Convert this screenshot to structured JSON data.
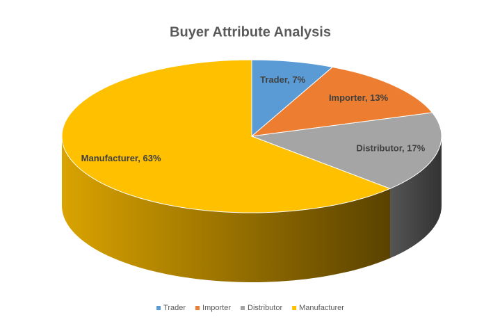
{
  "chart_data": {
    "type": "pie3d",
    "title": "Buyer Attribute Analysis",
    "categories": [
      "Trader",
      "Importer",
      "Distributor",
      "Manufacturer"
    ],
    "values": [
      7,
      13,
      17,
      63
    ],
    "value_labels": [
      "Trader, 7%",
      "Importer, 13%",
      "Distributor, 17%",
      "Manufacturer, 63%"
    ],
    "colors": [
      "#5b9bd5",
      "#ed7d31",
      "#a5a5a5",
      "#ffc000"
    ],
    "legend": "bottom"
  }
}
